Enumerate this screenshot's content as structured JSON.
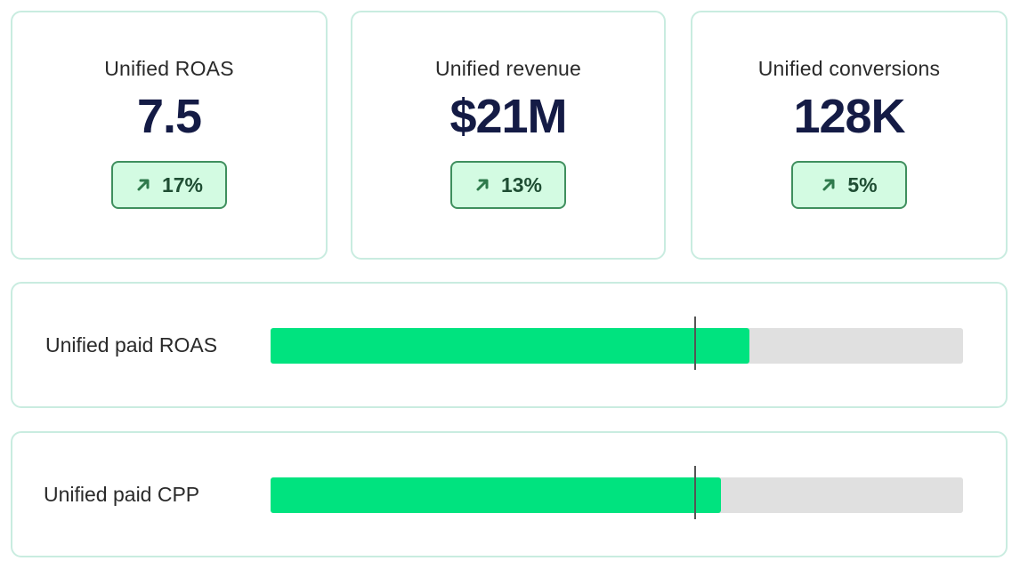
{
  "kpis": [
    {
      "label": "Unified ROAS",
      "value": "7.5",
      "change": "17%",
      "trend": "up"
    },
    {
      "label": "Unified revenue",
      "value": "$21M",
      "change": "13%",
      "trend": "up"
    },
    {
      "label": "Unified conversions",
      "value": "128K",
      "change": "5%",
      "trend": "up"
    }
  ],
  "bars": [
    {
      "label": "Unified paid ROAS",
      "fill_fraction": 0.692,
      "marker_fraction": 0.612
    },
    {
      "label": "Unified paid CPP",
      "fill_fraction": 0.651,
      "marker_fraction": 0.612
    }
  ],
  "colors": {
    "card_border": "#c9ece0",
    "value_text": "#141b45",
    "badge_bg": "#d3fbe2",
    "badge_border": "#3f8f5e",
    "bar_fill": "#00e37f",
    "bar_track": "#e0e0e0",
    "marker": "#555555"
  },
  "icons": {
    "trend_up": "arrow-up-right-icon"
  }
}
